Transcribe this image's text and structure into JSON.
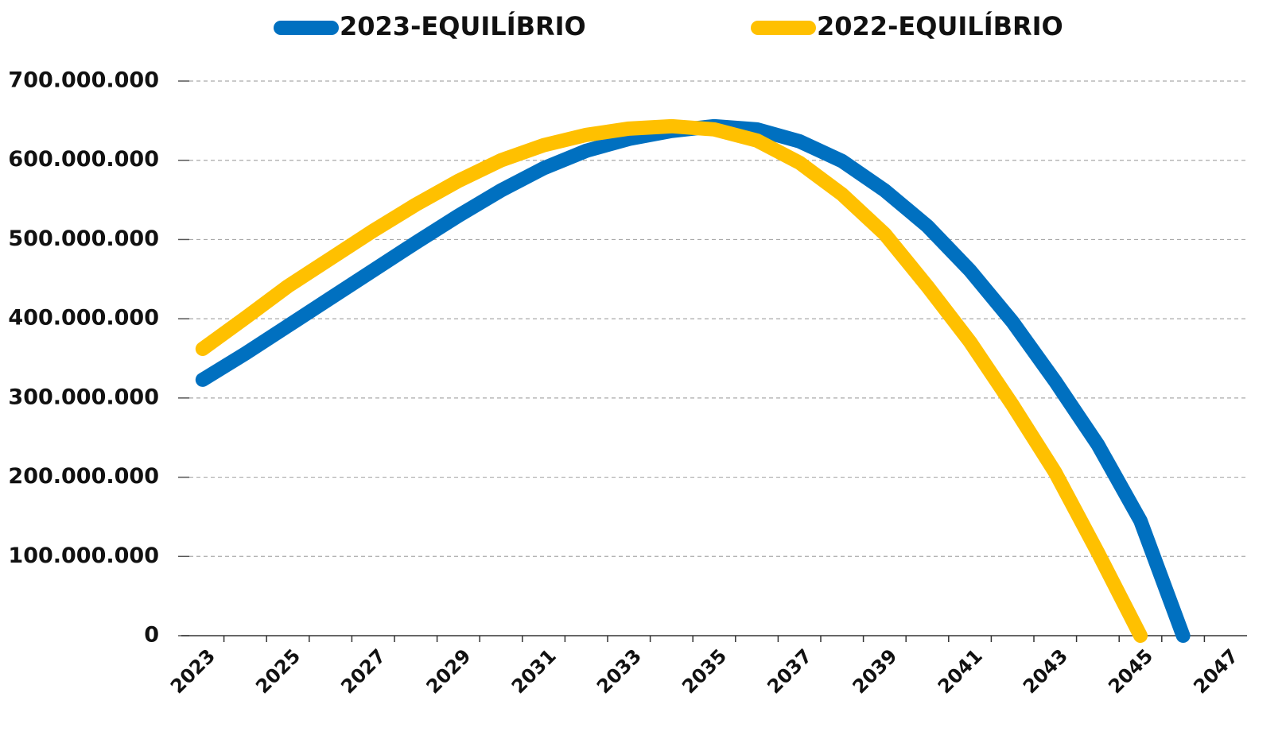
{
  "chart_data": {
    "type": "line",
    "categories": [
      "2023",
      null,
      "2025",
      null,
      "2027",
      null,
      "2029",
      null,
      "2031",
      null,
      "2033",
      null,
      "2035",
      null,
      "2037",
      null,
      "2039",
      null,
      "2041",
      null,
      "2043",
      null,
      "2045",
      null,
      "2047"
    ],
    "series": [
      {
        "name": "2023-EQUILÍBRIO",
        "color": "#0070c0",
        "values": [
          323000000,
          356000000,
          391000000,
          426000000,
          461000000,
          496000000,
          530000000,
          562000000,
          590000000,
          612000000,
          627000000,
          637000000,
          643000000,
          639000000,
          624000000,
          599000000,
          562000000,
          517000000,
          461000000,
          396000000,
          321000000,
          241000000,
          145000000,
          0,
          null
        ]
      },
      {
        "name": "2022-EQUILÍBRIO",
        "color": "#ffc000",
        "values": [
          362000000,
          401000000,
          441000000,
          476000000,
          511000000,
          544000000,
          574000000,
          600000000,
          619000000,
          632000000,
          640000000,
          643000000,
          639000000,
          625000000,
          597000000,
          557000000,
          507000000,
          441000000,
          371000000,
          291000000,
          206000000,
          105000000,
          0,
          null,
          null
        ]
      }
    ],
    "ylim": [
      0,
      700000000
    ],
    "yticks": [
      0,
      {
        "value": 100000000,
        "label": "100.000.000"
      },
      {
        "value": 200000000,
        "label": "200.000.000"
      },
      {
        "value": 300000000,
        "label": "300.000.000"
      },
      {
        "value": 400000000,
        "label": "400.000.000"
      },
      {
        "value": 500000000,
        "label": "500.000.000"
      },
      {
        "value": 600000000,
        "label": "600.000.000"
      },
      {
        "value": 700000000,
        "label": "700.000.000"
      }
    ],
    "grid": true,
    "legend": "top"
  }
}
